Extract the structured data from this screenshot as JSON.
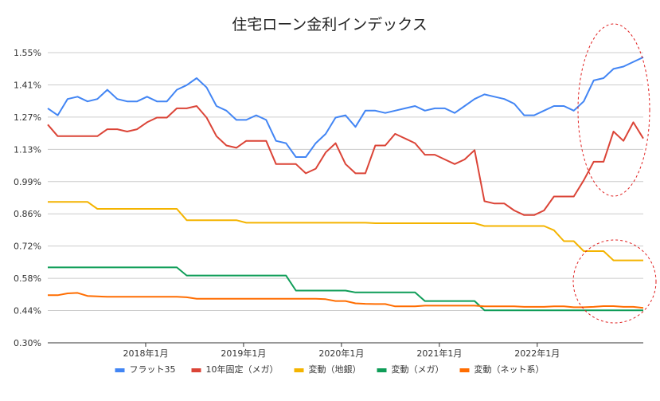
{
  "chart_data": {
    "type": "line",
    "title": "住宅ローン金利インデックス",
    "xlabel": "",
    "ylabel": "",
    "ylim": [
      0.3,
      1.55
    ],
    "yticks": [
      "1.55%",
      "1.41%",
      "1.27%",
      "1.13%",
      "0.99%",
      "0.86%",
      "0.72%",
      "0.58%",
      "0.44%",
      "0.30%"
    ],
    "xticks": [
      "2018年1月",
      "2019年1月",
      "2020年1月",
      "2021年1月",
      "2022年1月"
    ],
    "x_start": "2017-01",
    "x_end": "2023-02",
    "grid": true,
    "legend_position": "bottom",
    "series": [
      {
        "name": "フラット35",
        "color": "#4285F4",
        "values": [
          1.31,
          1.28,
          1.35,
          1.36,
          1.34,
          1.35,
          1.39,
          1.35,
          1.34,
          1.34,
          1.36,
          1.34,
          1.34,
          1.39,
          1.41,
          1.44,
          1.4,
          1.32,
          1.3,
          1.26,
          1.26,
          1.28,
          1.26,
          1.17,
          1.16,
          1.1,
          1.1,
          1.16,
          1.2,
          1.27,
          1.28,
          1.23,
          1.3,
          1.3,
          1.29,
          1.3,
          1.31,
          1.32,
          1.3,
          1.31,
          1.31,
          1.29,
          1.32,
          1.35,
          1.37,
          1.36,
          1.35,
          1.33,
          1.28,
          1.28,
          1.3,
          1.32,
          1.32,
          1.3,
          1.34,
          1.43,
          1.44,
          1.48,
          1.49,
          1.51,
          1.53
        ]
      },
      {
        "name": "10年固定（メガ）",
        "color": "#DB4437",
        "values": [
          1.24,
          1.19,
          1.19,
          1.19,
          1.19,
          1.19,
          1.22,
          1.22,
          1.21,
          1.22,
          1.25,
          1.27,
          1.27,
          1.31,
          1.31,
          1.32,
          1.27,
          1.19,
          1.15,
          1.14,
          1.17,
          1.17,
          1.17,
          1.07,
          1.07,
          1.07,
          1.03,
          1.05,
          1.12,
          1.16,
          1.07,
          1.03,
          1.03,
          1.15,
          1.15,
          1.2,
          1.18,
          1.16,
          1.11,
          1.11,
          1.09,
          1.07,
          1.09,
          1.13,
          0.91,
          0.9,
          0.9,
          0.87,
          0.85,
          0.85,
          0.87,
          0.93,
          0.93,
          0.93,
          1.0,
          1.08,
          1.08,
          1.21,
          1.17,
          1.25,
          1.18
        ]
      },
      {
        "name": "変動（地銀）",
        "color": "#F4B400",
        "values": [
          0.907,
          0.907,
          0.907,
          0.907,
          0.907,
          0.877,
          0.877,
          0.877,
          0.877,
          0.877,
          0.877,
          0.877,
          0.877,
          0.877,
          0.828,
          0.828,
          0.828,
          0.828,
          0.828,
          0.828,
          0.817,
          0.817,
          0.817,
          0.817,
          0.817,
          0.817,
          0.817,
          0.817,
          0.817,
          0.817,
          0.817,
          0.817,
          0.817,
          0.815,
          0.815,
          0.815,
          0.815,
          0.815,
          0.815,
          0.815,
          0.815,
          0.815,
          0.815,
          0.815,
          0.803,
          0.803,
          0.803,
          0.803,
          0.803,
          0.803,
          0.803,
          0.785,
          0.738,
          0.738,
          0.695,
          0.695,
          0.695,
          0.655,
          0.655,
          0.655,
          0.655
        ]
      },
      {
        "name": "変動（メガ）",
        "color": "#0F9D58",
        "values": [
          0.625,
          0.625,
          0.625,
          0.625,
          0.625,
          0.625,
          0.625,
          0.625,
          0.625,
          0.625,
          0.625,
          0.625,
          0.625,
          0.625,
          0.59,
          0.59,
          0.59,
          0.59,
          0.59,
          0.59,
          0.59,
          0.59,
          0.59,
          0.59,
          0.59,
          0.525,
          0.525,
          0.525,
          0.525,
          0.525,
          0.525,
          0.517,
          0.517,
          0.517,
          0.517,
          0.517,
          0.517,
          0.517,
          0.48,
          0.48,
          0.48,
          0.48,
          0.48,
          0.48,
          0.44,
          0.44,
          0.44,
          0.44,
          0.44,
          0.44,
          0.44,
          0.44,
          0.44,
          0.44,
          0.44,
          0.44,
          0.44,
          0.44,
          0.44,
          0.44,
          0.44
        ]
      },
      {
        "name": "変動（ネット系）",
        "color": "#FF6D01",
        "values": [
          0.505,
          0.505,
          0.513,
          0.515,
          0.502,
          0.5,
          0.498,
          0.498,
          0.498,
          0.498,
          0.498,
          0.498,
          0.498,
          0.498,
          0.496,
          0.49,
          0.49,
          0.49,
          0.49,
          0.49,
          0.49,
          0.49,
          0.49,
          0.49,
          0.49,
          0.49,
          0.49,
          0.49,
          0.488,
          0.48,
          0.48,
          0.47,
          0.468,
          0.467,
          0.467,
          0.457,
          0.457,
          0.457,
          0.46,
          0.46,
          0.46,
          0.46,
          0.46,
          0.46,
          0.457,
          0.457,
          0.457,
          0.457,
          0.455,
          0.455,
          0.455,
          0.457,
          0.457,
          0.453,
          0.453,
          0.455,
          0.458,
          0.458,
          0.455,
          0.455,
          0.45
        ]
      }
    ]
  }
}
